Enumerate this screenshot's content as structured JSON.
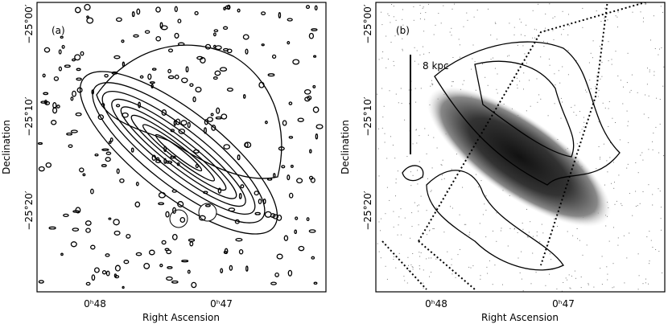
{
  "panels": [
    {
      "label": "(a)",
      "x_axis_label": "Right Ascension",
      "y_axis_label": "Declination",
      "x_ticks": [
        "0ʰ48",
        "0ʰ47"
      ],
      "y_ticks": [
        "−25°00′",
        "−25°10′",
        "−25°20′"
      ]
    },
    {
      "label": "(b)",
      "x_axis_label": "Right Ascension",
      "y_axis_label": "Declination",
      "x_ticks": [
        "0ʰ48",
        "0ʰ47"
      ],
      "y_ticks": [
        "−25°00′",
        "−25°10′",
        "−25°20′"
      ],
      "scale_bar": "8 kpc"
    }
  ]
}
